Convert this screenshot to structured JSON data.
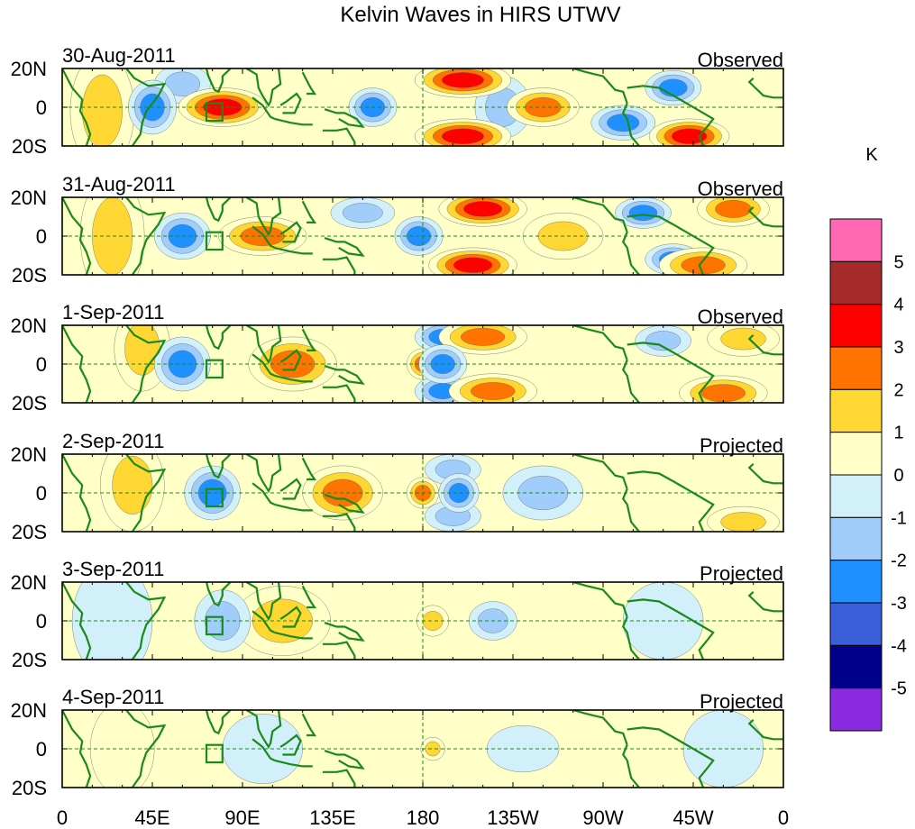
{
  "chart_data": {
    "type": "heatmap",
    "title": "Kelvin Waves in HIRS UTWV",
    "colorbar": {
      "unit_label": "K",
      "levels": [
        "-5",
        "-4",
        "-3",
        "-2",
        "-1",
        "0",
        "1",
        "2",
        "3",
        "4",
        "5"
      ],
      "colors": [
        "#8a2be2",
        "#00008b",
        "#3b5fd9",
        "#1e90ff",
        "#a0cdfa",
        "#d2f0fa",
        "#ffffc8",
        "#ffd732",
        "#ff7300",
        "#ff0000",
        "#a52a2a",
        "#ff69b4"
      ]
    },
    "x_ticks": [
      "0",
      "45E",
      "90E",
      "135E",
      "180",
      "135W",
      "90W",
      "45W",
      "0"
    ],
    "y_ticks": [
      "20N",
      "0",
      "20S"
    ],
    "xlim_deg_east": [
      0,
      360
    ],
    "ylim_deg_north": [
      -20,
      20
    ],
    "panels": [
      {
        "date": "30-Aug-2011",
        "status": "Observed",
        "anomalies": [
          {
            "lon": 80,
            "lat": 0,
            "value": 3.2,
            "lon_width": 22,
            "lat_width": 10
          },
          {
            "lon": 200,
            "lat": 14,
            "value": 3.5,
            "lon_width": 24,
            "lat_width": 9
          },
          {
            "lon": 200,
            "lat": -15,
            "value": 3.4,
            "lon_width": 24,
            "lat_width": 9
          },
          {
            "lon": 240,
            "lat": 0,
            "value": 2.4,
            "lon_width": 18,
            "lat_width": 10
          },
          {
            "lon": 313,
            "lat": -15,
            "value": 3.2,
            "lon_width": 20,
            "lat_width": 9
          },
          {
            "lon": 20,
            "lat": -2,
            "value": 1.3,
            "lon_width": 16,
            "lat_width": 30
          },
          {
            "lon": 155,
            "lat": 0,
            "value": -2.6,
            "lon_width": 12,
            "lat_width": 10
          },
          {
            "lon": 45,
            "lat": 0,
            "value": -2.4,
            "lon_width": 12,
            "lat_width": 14
          },
          {
            "lon": 60,
            "lat": 12,
            "value": -2.0,
            "lon_width": 14,
            "lat_width": 10
          },
          {
            "lon": 305,
            "lat": 10,
            "value": -2.5,
            "lon_width": 14,
            "lat_width": 9
          },
          {
            "lon": 280,
            "lat": -8,
            "value": -2.2,
            "lon_width": 16,
            "lat_width": 9
          },
          {
            "lon": 220,
            "lat": 0,
            "value": -1.3,
            "lon_width": 14,
            "lat_width": 16
          }
        ]
      },
      {
        "date": "31-Aug-2011",
        "status": "Observed",
        "anomalies": [
          {
            "lon": 100,
            "lat": 0,
            "value": 3.0,
            "lon_width": 22,
            "lat_width": 10
          },
          {
            "lon": 210,
            "lat": 14,
            "value": 3.4,
            "lon_width": 22,
            "lat_width": 9
          },
          {
            "lon": 205,
            "lat": -15,
            "value": 3.3,
            "lon_width": 22,
            "lat_width": 9
          },
          {
            "lon": 250,
            "lat": 0,
            "value": 1.8,
            "lon_width": 20,
            "lat_width": 12
          },
          {
            "lon": 320,
            "lat": -15,
            "value": 3.0,
            "lon_width": 22,
            "lat_width": 9
          },
          {
            "lon": 335,
            "lat": 14,
            "value": 2.6,
            "lon_width": 18,
            "lat_width": 9
          },
          {
            "lon": 25,
            "lat": 0,
            "value": 1.5,
            "lon_width": 16,
            "lat_width": 32
          },
          {
            "lon": 60,
            "lat": 0,
            "value": -3.0,
            "lon_width": 14,
            "lat_width": 12
          },
          {
            "lon": 178,
            "lat": 0,
            "value": -2.8,
            "lon_width": 12,
            "lat_width": 10
          },
          {
            "lon": 290,
            "lat": 12,
            "value": -2.4,
            "lon_width": 14,
            "lat_width": 8
          },
          {
            "lon": 305,
            "lat": -12,
            "value": -2.4,
            "lon_width": 14,
            "lat_width": 8
          },
          {
            "lon": 150,
            "lat": 12,
            "value": -1.6,
            "lon_width": 16,
            "lat_width": 8
          }
        ]
      },
      {
        "date": "1-Sep-2011",
        "status": "Observed",
        "anomalies": [
          {
            "lon": 115,
            "lat": 0,
            "value": 2.6,
            "lon_width": 22,
            "lat_width": 14
          },
          {
            "lon": 210,
            "lat": 14,
            "value": 2.4,
            "lon_width": 22,
            "lat_width": 9
          },
          {
            "lon": 215,
            "lat": -14,
            "value": 2.8,
            "lon_width": 22,
            "lat_width": 9
          },
          {
            "lon": 330,
            "lat": -15,
            "value": 2.6,
            "lon_width": 22,
            "lat_width": 9
          },
          {
            "lon": 340,
            "lat": 13,
            "value": 2.0,
            "lon_width": 18,
            "lat_width": 9
          },
          {
            "lon": 40,
            "lat": 8,
            "value": 1.6,
            "lon_width": 14,
            "lat_width": 22
          },
          {
            "lon": 180,
            "lat": 0,
            "value": 2.2,
            "lon_width": 8,
            "lat_width": 8
          },
          {
            "lon": 60,
            "lat": 0,
            "value": -2.8,
            "lon_width": 14,
            "lat_width": 14
          },
          {
            "lon": 190,
            "lat": 0,
            "value": -3.0,
            "lon_width": 12,
            "lat_width": 10
          },
          {
            "lon": 190,
            "lat": -14,
            "value": -2.4,
            "lon_width": 14,
            "lat_width": 8
          },
          {
            "lon": 190,
            "lat": 14,
            "value": -2.2,
            "lon_width": 14,
            "lat_width": 8
          },
          {
            "lon": 300,
            "lat": 12,
            "value": -2.0,
            "lon_width": 14,
            "lat_width": 8
          }
        ]
      },
      {
        "date": "2-Sep-2011",
        "status": "Projected",
        "anomalies": [
          {
            "lon": 140,
            "lat": 0,
            "value": 2.4,
            "lon_width": 20,
            "lat_width": 14
          },
          {
            "lon": 180,
            "lat": 0,
            "value": 2.6,
            "lon_width": 8,
            "lat_width": 8
          },
          {
            "lon": 35,
            "lat": 4,
            "value": 1.4,
            "lon_width": 16,
            "lat_width": 24
          },
          {
            "lon": 340,
            "lat": -15,
            "value": 1.6,
            "lon_width": 18,
            "lat_width": 8
          },
          {
            "lon": 75,
            "lat": 0,
            "value": -2.2,
            "lon_width": 14,
            "lat_width": 14
          },
          {
            "lon": 198,
            "lat": 0,
            "value": -2.8,
            "lon_width": 10,
            "lat_width": 10
          },
          {
            "lon": 195,
            "lat": -12,
            "value": -1.6,
            "lon_width": 14,
            "lat_width": 8
          },
          {
            "lon": 195,
            "lat": 12,
            "value": -1.6,
            "lon_width": 14,
            "lat_width": 8
          },
          {
            "lon": 240,
            "lat": 0,
            "value": -1.2,
            "lon_width": 20,
            "lat_width": 14
          }
        ]
      },
      {
        "date": "3-Sep-2011",
        "status": "Projected",
        "anomalies": [
          {
            "lon": 110,
            "lat": 0,
            "value": 1.2,
            "lon_width": 24,
            "lat_width": 18
          },
          {
            "lon": 185,
            "lat": 0,
            "value": 1.6,
            "lon_width": 8,
            "lat_width": 8
          },
          {
            "lon": 80,
            "lat": 0,
            "value": -1.4,
            "lon_width": 14,
            "lat_width": 16
          },
          {
            "lon": 215,
            "lat": 0,
            "value": -1.4,
            "lon_width": 12,
            "lat_width": 10
          },
          {
            "lon": 25,
            "lat": 0,
            "value": -0.8,
            "lon_width": 20,
            "lat_width": 30
          },
          {
            "lon": 300,
            "lat": 0,
            "value": -0.8,
            "lon_width": 20,
            "lat_width": 20
          }
        ]
      },
      {
        "date": "4-Sep-2011",
        "status": "Projected",
        "anomalies": [
          {
            "lon": 185,
            "lat": 0,
            "value": 1.4,
            "lon_width": 6,
            "lat_width": 6
          },
          {
            "lon": 100,
            "lat": 0,
            "value": -0.8,
            "lon_width": 20,
            "lat_width": 18
          },
          {
            "lon": 230,
            "lat": 0,
            "value": -0.7,
            "lon_width": 18,
            "lat_width": 12
          },
          {
            "lon": 330,
            "lat": 0,
            "value": -0.7,
            "lon_width": 20,
            "lat_width": 20
          },
          {
            "lon": 30,
            "lat": 0,
            "value": 0.7,
            "lon_width": 16,
            "lat_width": 24
          }
        ]
      }
    ]
  }
}
